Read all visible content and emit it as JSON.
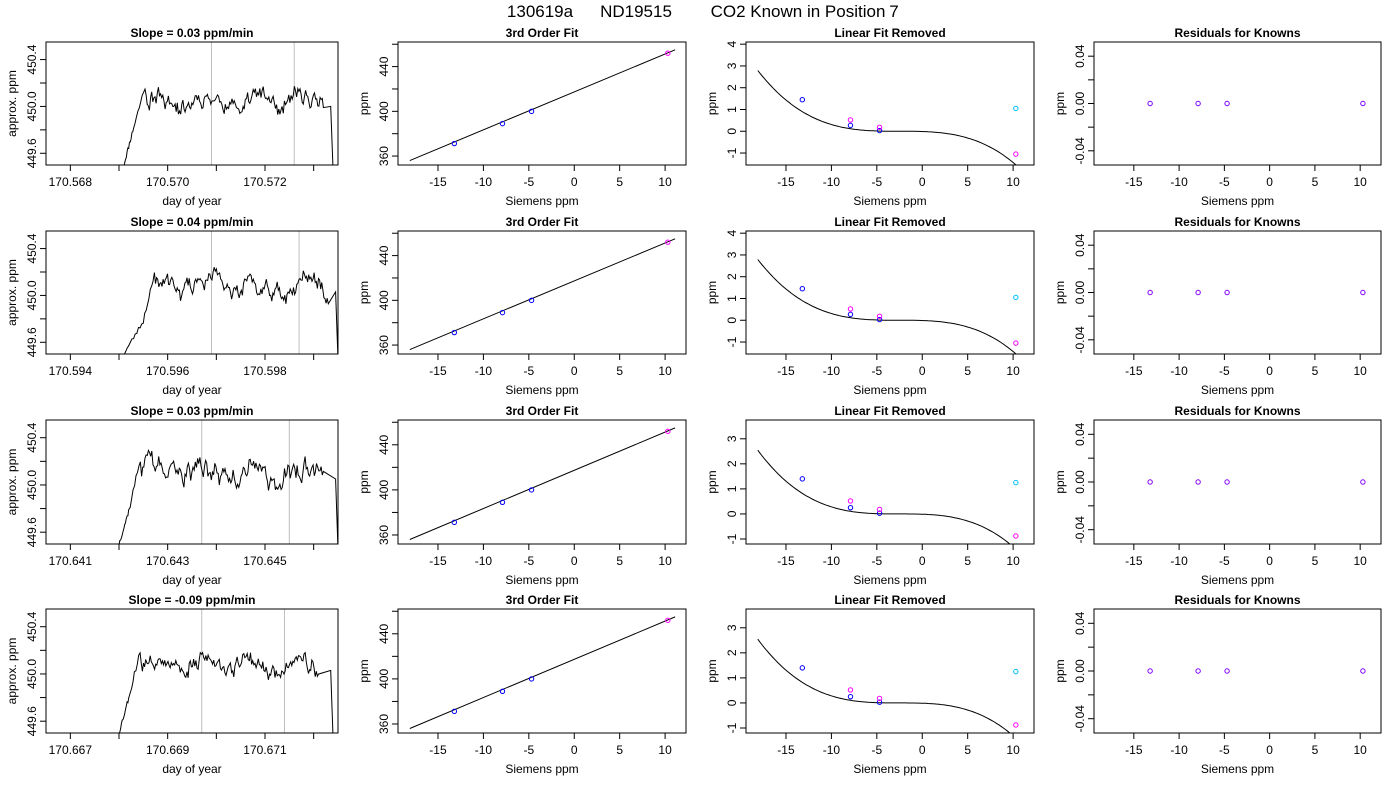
{
  "figure": {
    "suptitle_parts": [
      "130619a",
      "ND19515",
      "CO2 Known in Position",
      "7"
    ]
  },
  "colors": {
    "line": "#000000",
    "grid_vline": "#bebebe",
    "known_blue": "#0000ff",
    "known_magenta": "#ff00ff",
    "known_cyan": "#00bfff",
    "residual_purple": "#8000ff"
  },
  "chart_data": [
    {
      "row": 1,
      "type": "line",
      "title": "Slope =  0.03  ppm/min",
      "xlabel": "day of year",
      "ylabel": "approx. ppm",
      "xlim": [
        170.5675,
        170.5735
      ],
      "ylim": [
        449.5,
        450.55
      ],
      "xticks": [
        170.568,
        170.569,
        170.57,
        170.571,
        170.572,
        170.573
      ],
      "xticklabels": [
        "170.568",
        "",
        "170.570",
        "",
        "170.572",
        ""
      ],
      "yticks": [
        449.6,
        449.8,
        450.0,
        450.2,
        450.4
      ],
      "yticklabels": [
        "449.6",
        "",
        "450.0",
        "",
        "450.4"
      ],
      "vlines": [
        170.5709,
        170.5726
      ],
      "trace": {
        "x_start": 170.5691,
        "x_rise_end": 170.5693,
        "x_end": 170.5734,
        "x_plateau_end": 170.5732,
        "y_start": 449.5,
        "y_rise_end": 449.82,
        "y_mean": 450.05,
        "y_amp": 0.1,
        "seed": 11
      }
    },
    {
      "row": 1,
      "type": "line",
      "title": "3rd Order Fit",
      "xlabel": "Siemens ppm",
      "ylabel": "ppm",
      "xlim": [
        -19.4,
        12.3
      ],
      "ylim": [
        352,
        462
      ],
      "xticks": [
        -15,
        -10,
        -5,
        0,
        5,
        10
      ],
      "xticklabels": [
        "-15",
        "-10",
        "-5",
        "0",
        "5",
        "10"
      ],
      "yticks": [
        360,
        380,
        400,
        420,
        440,
        460
      ],
      "yticklabels": [
        "360",
        "",
        "400",
        "",
        "440",
        ""
      ],
      "fit_line": {
        "x0": -18.1,
        "y0": 356,
        "x1": 11.1,
        "y1": 455
      },
      "points": [
        {
          "x": -13.2,
          "y": 371.2,
          "color": "blue"
        },
        {
          "x": -7.9,
          "y": 389.0,
          "color": "blue"
        },
        {
          "x": -4.7,
          "y": 400.0,
          "color": "blue"
        },
        {
          "x": 10.3,
          "y": 452.0,
          "color": "magenta"
        }
      ]
    },
    {
      "row": 1,
      "type": "line",
      "title": "Linear Fit Removed",
      "xlabel": "Siemens ppm",
      "ylabel": "ppm",
      "xlim": [
        -19.4,
        12.3
      ],
      "ylim": [
        -1.55,
        4.1
      ],
      "xticks": [
        -15,
        -10,
        -5,
        0,
        5,
        10
      ],
      "xticklabels": [
        "-15",
        "-10",
        "-5",
        "0",
        "5",
        "10"
      ],
      "yticks": [
        -1,
        0,
        1,
        2,
        3,
        4
      ],
      "yticklabels": [
        "-1",
        "0",
        "1",
        "2",
        "3",
        "4"
      ],
      "curve": {
        "x0": -18.1,
        "x1": 11.1,
        "center": -2.5,
        "a": -0.000735,
        "b": 0.0
      },
      "points": [
        {
          "x": -13.2,
          "y": 1.45,
          "color": "blue"
        },
        {
          "x": -7.9,
          "y": 0.27,
          "color": "blue"
        },
        {
          "x": -4.7,
          "y": 0.03,
          "color": "blue"
        },
        {
          "x": -7.9,
          "y": 0.52,
          "color": "magenta"
        },
        {
          "x": -4.7,
          "y": 0.18,
          "color": "magenta"
        },
        {
          "x": 10.3,
          "y": 1.05,
          "color": "cyan"
        },
        {
          "x": 10.3,
          "y": -1.05,
          "color": "magenta"
        }
      ]
    },
    {
      "row": 1,
      "type": "scatter",
      "title": "Residuals for Knowns",
      "xlabel": "Siemens ppm",
      "ylabel": "ppm",
      "xlim": [
        -19.4,
        12.3
      ],
      "ylim": [
        -0.052,
        0.052
      ],
      "xticks": [
        -15,
        -10,
        -5,
        0,
        5,
        10
      ],
      "xticklabels": [
        "-15",
        "-10",
        "-5",
        "0",
        "5",
        "10"
      ],
      "yticks": [
        -0.04,
        -0.02,
        0.0,
        0.02,
        0.04
      ],
      "yticklabels": [
        "-0.04",
        "",
        "0.00",
        "",
        "0.04"
      ],
      "points": [
        {
          "x": -13.2,
          "y": 0.0,
          "color": "residual"
        },
        {
          "x": -7.9,
          "y": 0.0,
          "color": "residual"
        },
        {
          "x": -4.7,
          "y": 0.0,
          "color": "residual"
        },
        {
          "x": 10.3,
          "y": 0.0,
          "color": "residual"
        }
      ]
    },
    {
      "row": 2,
      "type": "line",
      "title": "Slope =  0.04  ppm/min",
      "xlabel": "day of year",
      "ylabel": "approx. ppm",
      "xlim": [
        170.5935,
        170.5995
      ],
      "ylim": [
        449.5,
        450.55
      ],
      "xticks": [
        170.594,
        170.595,
        170.596,
        170.597,
        170.598,
        170.599
      ],
      "xticklabels": [
        "170.594",
        "",
        "170.596",
        "",
        "170.598",
        ""
      ],
      "yticks": [
        449.6,
        449.8,
        450.0,
        450.2,
        450.4
      ],
      "yticklabels": [
        "449.6",
        "",
        "450.0",
        "",
        "450.4"
      ],
      "vlines": [
        170.5969,
        170.5987
      ],
      "trace": {
        "x_start": 170.5951,
        "x_rise_end": 170.5955,
        "x_end": 170.5995,
        "x_plateau_end": 170.5993,
        "y_start": 449.5,
        "y_rise_end": 449.78,
        "y_mean": 450.08,
        "y_amp": 0.1,
        "seed": 23
      }
    },
    {
      "row": 2,
      "type": "line",
      "title": "3rd Order Fit",
      "xlabel": "Siemens ppm",
      "ylabel": "ppm",
      "xlim": [
        -19.4,
        12.3
      ],
      "ylim": [
        352,
        462
      ],
      "xticks": [
        -15,
        -10,
        -5,
        0,
        5,
        10
      ],
      "xticklabels": [
        "-15",
        "-10",
        "-5",
        "0",
        "5",
        "10"
      ],
      "yticks": [
        360,
        380,
        400,
        420,
        440,
        460
      ],
      "yticklabels": [
        "360",
        "",
        "400",
        "",
        "440",
        ""
      ],
      "fit_line": {
        "x0": -18.1,
        "y0": 356,
        "x1": 11.1,
        "y1": 455
      },
      "points": [
        {
          "x": -13.2,
          "y": 371.2,
          "color": "blue"
        },
        {
          "x": -7.9,
          "y": 389.0,
          "color": "blue"
        },
        {
          "x": -4.7,
          "y": 400.0,
          "color": "blue"
        },
        {
          "x": 10.3,
          "y": 452.0,
          "color": "magenta"
        }
      ]
    },
    {
      "row": 2,
      "type": "line",
      "title": "Linear Fit Removed",
      "xlabel": "Siemens ppm",
      "ylabel": "ppm",
      "xlim": [
        -19.4,
        12.3
      ],
      "ylim": [
        -1.55,
        4.1
      ],
      "xticks": [
        -15,
        -10,
        -5,
        0,
        5,
        10
      ],
      "xticklabels": [
        "-15",
        "-10",
        "-5",
        "0",
        "5",
        "10"
      ],
      "yticks": [
        -1,
        0,
        1,
        2,
        3,
        4
      ],
      "yticklabels": [
        "-1",
        "0",
        "1",
        "2",
        "3",
        "4"
      ],
      "curve": {
        "x0": -18.1,
        "x1": 11.1,
        "center": -2.5,
        "a": -0.000735,
        "b": 0.0
      },
      "points": [
        {
          "x": -13.2,
          "y": 1.45,
          "color": "blue"
        },
        {
          "x": -7.9,
          "y": 0.27,
          "color": "blue"
        },
        {
          "x": -4.7,
          "y": 0.03,
          "color": "blue"
        },
        {
          "x": -7.9,
          "y": 0.52,
          "color": "magenta"
        },
        {
          "x": -4.7,
          "y": 0.18,
          "color": "magenta"
        },
        {
          "x": 10.3,
          "y": 1.05,
          "color": "cyan"
        },
        {
          "x": 10.3,
          "y": -1.05,
          "color": "magenta"
        }
      ]
    },
    {
      "row": 2,
      "type": "scatter",
      "title": "Residuals for Knowns",
      "xlabel": "Siemens ppm",
      "ylabel": "ppm",
      "xlim": [
        -19.4,
        12.3
      ],
      "ylim": [
        -0.052,
        0.052
      ],
      "xticks": [
        -15,
        -10,
        -5,
        0,
        5,
        10
      ],
      "xticklabels": [
        "-15",
        "-10",
        "-5",
        "0",
        "5",
        "10"
      ],
      "yticks": [
        -0.04,
        -0.02,
        0.0,
        0.02,
        0.04
      ],
      "yticklabels": [
        "-0.04",
        "",
        "0.00",
        "",
        "0.04"
      ],
      "points": [
        {
          "x": -13.2,
          "y": 0.0,
          "color": "residual"
        },
        {
          "x": -7.9,
          "y": 0.0,
          "color": "residual"
        },
        {
          "x": -4.7,
          "y": 0.0,
          "color": "residual"
        },
        {
          "x": 10.3,
          "y": 0.0,
          "color": "residual"
        }
      ]
    },
    {
      "row": 3,
      "type": "line",
      "title": "Slope =  0.03  ppm/min",
      "xlabel": "day of year",
      "ylabel": "approx. ppm",
      "xlim": [
        170.6405,
        170.6465
      ],
      "ylim": [
        449.5,
        450.55
      ],
      "xticks": [
        170.641,
        170.642,
        170.643,
        170.644,
        170.645,
        170.646
      ],
      "xticklabels": [
        "170.641",
        "",
        "170.643",
        "",
        "170.645",
        ""
      ],
      "yticks": [
        449.6,
        449.8,
        450.0,
        450.2,
        450.4
      ],
      "yticklabels": [
        "449.6",
        "",
        "450.0",
        "",
        "450.4"
      ],
      "vlines": [
        170.6437,
        170.6455
      ],
      "trace": {
        "x_start": 170.642,
        "x_rise_end": 170.6422,
        "x_end": 170.6465,
        "x_plateau_end": 170.6462,
        "y_start": 449.5,
        "y_rise_end": 449.78,
        "y_mean": 450.1,
        "y_amp": 0.12,
        "seed": 37
      }
    },
    {
      "row": 3,
      "type": "line",
      "title": "3rd Order Fit",
      "xlabel": "Siemens ppm",
      "ylabel": "ppm",
      "xlim": [
        -19.4,
        12.3
      ],
      "ylim": [
        352,
        462
      ],
      "xticks": [
        -15,
        -10,
        -5,
        0,
        5,
        10
      ],
      "xticklabels": [
        "-15",
        "-10",
        "-5",
        "0",
        "5",
        "10"
      ],
      "yticks": [
        360,
        380,
        400,
        420,
        440,
        460
      ],
      "yticklabels": [
        "360",
        "",
        "400",
        "",
        "440",
        ""
      ],
      "fit_line": {
        "x0": -18.1,
        "y0": 356,
        "x1": 11.1,
        "y1": 455
      },
      "points": [
        {
          "x": -13.2,
          "y": 371.2,
          "color": "blue"
        },
        {
          "x": -7.9,
          "y": 389.0,
          "color": "blue"
        },
        {
          "x": -4.7,
          "y": 400.0,
          "color": "blue"
        },
        {
          "x": 10.3,
          "y": 452.0,
          "color": "magenta"
        }
      ]
    },
    {
      "row": 3,
      "type": "line",
      "title": "Linear Fit Removed",
      "xlabel": "Siemens ppm",
      "ylabel": "ppm",
      "xlim": [
        -19.4,
        12.3
      ],
      "ylim": [
        -1.2,
        3.75
      ],
      "xticks": [
        -15,
        -10,
        -5,
        0,
        5,
        10
      ],
      "xticklabels": [
        "-15",
        "-10",
        "-5",
        "0",
        "5",
        "10"
      ],
      "yticks": [
        -1,
        0,
        1,
        2,
        3
      ],
      "yticklabels": [
        "-1",
        "0",
        "1",
        "2",
        "3"
      ],
      "curve": {
        "x0": -18.1,
        "x1": 11.1,
        "center": -2.5,
        "a": -0.00067,
        "b": 0.0
      },
      "points": [
        {
          "x": -13.2,
          "y": 1.4,
          "color": "blue"
        },
        {
          "x": -7.9,
          "y": 0.25,
          "color": "blue"
        },
        {
          "x": -4.7,
          "y": 0.03,
          "color": "blue"
        },
        {
          "x": -7.9,
          "y": 0.52,
          "color": "magenta"
        },
        {
          "x": -4.7,
          "y": 0.18,
          "color": "magenta"
        },
        {
          "x": 10.3,
          "y": 1.25,
          "color": "cyan"
        },
        {
          "x": 10.3,
          "y": -0.88,
          "color": "magenta"
        }
      ]
    },
    {
      "row": 3,
      "type": "scatter",
      "title": "Residuals for Knowns",
      "xlabel": "Siemens ppm",
      "ylabel": "ppm",
      "xlim": [
        -19.4,
        12.3
      ],
      "ylim": [
        -0.052,
        0.052
      ],
      "xticks": [
        -15,
        -10,
        -5,
        0,
        5,
        10
      ],
      "xticklabels": [
        "-15",
        "-10",
        "-5",
        "0",
        "5",
        "10"
      ],
      "yticks": [
        -0.04,
        -0.02,
        0.0,
        0.02,
        0.04
      ],
      "yticklabels": [
        "-0.04",
        "",
        "0.00",
        "",
        "0.04"
      ],
      "points": [
        {
          "x": -13.2,
          "y": 0.0,
          "color": "residual"
        },
        {
          "x": -7.9,
          "y": 0.0,
          "color": "residual"
        },
        {
          "x": -4.7,
          "y": 0.0,
          "color": "residual"
        },
        {
          "x": 10.3,
          "y": 0.0,
          "color": "residual"
        }
      ]
    },
    {
      "row": 4,
      "type": "line",
      "title": "Slope =  -0.09  ppm/min",
      "xlabel": "day of year",
      "ylabel": "approx. ppm",
      "xlim": [
        170.6665,
        170.6725
      ],
      "ylim": [
        449.5,
        450.55
      ],
      "xticks": [
        170.667,
        170.668,
        170.669,
        170.67,
        170.671,
        170.672
      ],
      "xticklabels": [
        "170.667",
        "",
        "170.669",
        "",
        "170.671",
        ""
      ],
      "yticks": [
        449.6,
        449.8,
        450.0,
        450.2,
        450.4
      ],
      "yticklabels": [
        "449.6",
        "",
        "450.0",
        "",
        "450.4"
      ],
      "vlines": [
        170.6697,
        170.6714
      ],
      "trace": {
        "x_start": 170.668,
        "x_rise_end": 170.6682,
        "x_end": 170.6724,
        "x_plateau_end": 170.6721,
        "y_start": 449.5,
        "y_rise_end": 449.8,
        "y_mean": 450.08,
        "y_amp": 0.09,
        "seed": 53
      }
    },
    {
      "row": 4,
      "type": "line",
      "title": "3rd Order Fit",
      "xlabel": "Siemens ppm",
      "ylabel": "ppm",
      "xlim": [
        -19.4,
        12.3
      ],
      "ylim": [
        352,
        462
      ],
      "xticks": [
        -15,
        -10,
        -5,
        0,
        5,
        10
      ],
      "xticklabels": [
        "-15",
        "-10",
        "-5",
        "0",
        "5",
        "10"
      ],
      "yticks": [
        360,
        380,
        400,
        420,
        440,
        460
      ],
      "yticklabels": [
        "360",
        "",
        "400",
        "",
        "440",
        ""
      ],
      "fit_line": {
        "x0": -18.1,
        "y0": 356,
        "x1": 11.1,
        "y1": 455
      },
      "points": [
        {
          "x": -13.2,
          "y": 371.2,
          "color": "blue"
        },
        {
          "x": -7.9,
          "y": 389.0,
          "color": "blue"
        },
        {
          "x": -4.7,
          "y": 400.0,
          "color": "blue"
        },
        {
          "x": 10.3,
          "y": 452.0,
          "color": "magenta"
        }
      ]
    },
    {
      "row": 4,
      "type": "line",
      "title": "Linear Fit Removed",
      "xlabel": "Siemens ppm",
      "ylabel": "ppm",
      "xlim": [
        -19.4,
        12.3
      ],
      "ylim": [
        -1.2,
        3.75
      ],
      "xticks": [
        -15,
        -10,
        -5,
        0,
        5,
        10
      ],
      "xticklabels": [
        "-15",
        "-10",
        "-5",
        "0",
        "5",
        "10"
      ],
      "yticks": [
        -1,
        0,
        1,
        2,
        3
      ],
      "yticklabels": [
        "-1",
        "0",
        "1",
        "2",
        "3"
      ],
      "curve": {
        "x0": -18.1,
        "x1": 11.1,
        "center": -2.5,
        "a": -0.00067,
        "b": 0.0
      },
      "points": [
        {
          "x": -13.2,
          "y": 1.4,
          "color": "blue"
        },
        {
          "x": -7.9,
          "y": 0.25,
          "color": "blue"
        },
        {
          "x": -4.7,
          "y": 0.03,
          "color": "blue"
        },
        {
          "x": -7.9,
          "y": 0.52,
          "color": "magenta"
        },
        {
          "x": -4.7,
          "y": 0.18,
          "color": "magenta"
        },
        {
          "x": 10.3,
          "y": 1.25,
          "color": "cyan"
        },
        {
          "x": 10.3,
          "y": -0.88,
          "color": "magenta"
        }
      ]
    },
    {
      "row": 4,
      "type": "scatter",
      "title": "Residuals for Knowns",
      "xlabel": "Siemens ppm",
      "ylabel": "ppm",
      "xlim": [
        -19.4,
        12.3
      ],
      "ylim": [
        -0.052,
        0.052
      ],
      "xticks": [
        -15,
        -10,
        -5,
        0,
        5,
        10
      ],
      "xticklabels": [
        "-15",
        "-10",
        "-5",
        "0",
        "5",
        "10"
      ],
      "yticks": [
        -0.04,
        -0.02,
        0.0,
        0.02,
        0.04
      ],
      "yticklabels": [
        "-0.04",
        "",
        "0.00",
        "",
        "0.04"
      ],
      "points": [
        {
          "x": -13.2,
          "y": 0.0,
          "color": "residual"
        },
        {
          "x": -7.9,
          "y": 0.0,
          "color": "residual"
        },
        {
          "x": -4.7,
          "y": 0.0,
          "color": "residual"
        },
        {
          "x": 10.3,
          "y": 0.0,
          "color": "residual"
        }
      ]
    }
  ]
}
